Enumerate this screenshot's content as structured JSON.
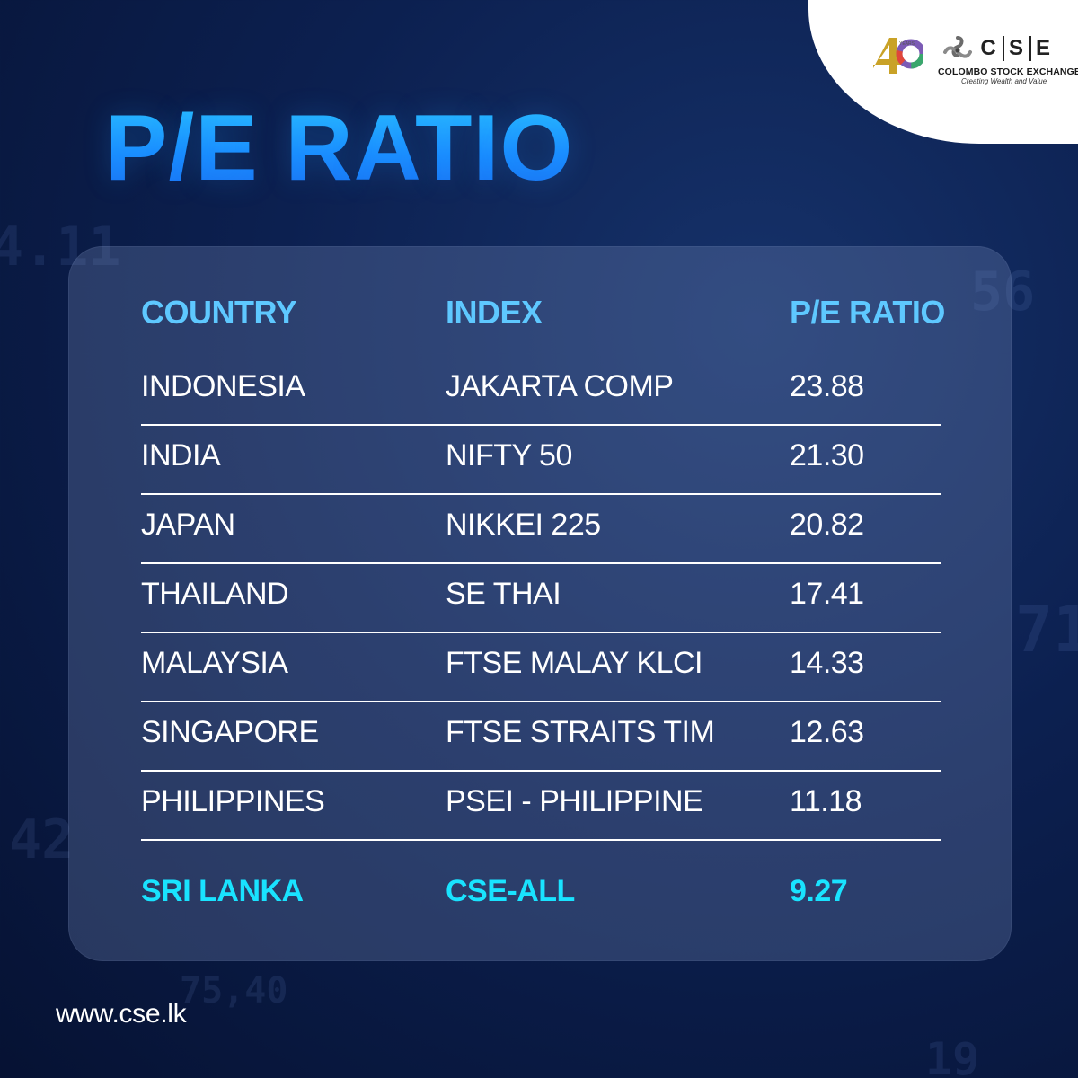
{
  "title": "P/E RATIO",
  "logo": {
    "years_badge": "40 YEARS",
    "letters": [
      "C",
      "S",
      "E"
    ],
    "name": "COLOMBO STOCK EXCHANGE",
    "tagline": "Creating Wealth and Value"
  },
  "table": {
    "headers": {
      "country": "COUNTRY",
      "index": "INDEX",
      "pe": "P/E RATIO"
    },
    "rows": [
      {
        "country": "INDONESIA",
        "index": "JAKARTA COMP",
        "pe": "23.88"
      },
      {
        "country": "INDIA",
        "index": "NIFTY 50",
        "pe": "21.30"
      },
      {
        "country": "JAPAN",
        "index": "NIKKEI 225",
        "pe": "20.82"
      },
      {
        "country": "THAILAND",
        "index": "SE THAI",
        "pe": "17.41"
      },
      {
        "country": "MALAYSIA",
        "index": "FTSE MALAY KLCI",
        "pe": "14.33"
      },
      {
        "country": "SINGAPORE",
        "index": "FTSE STRAITS TIM",
        "pe": "12.63"
      },
      {
        "country": "PHILIPPINES",
        "index": "PSEI - PHILIPPINE",
        "pe": "11.18"
      }
    ],
    "highlight": {
      "country": "SRI LANKA",
      "index": "CSE-ALL",
      "pe": "9.27"
    }
  },
  "website": "www.cse.lk",
  "colors": {
    "title": "#1a8dff",
    "header": "#5ec8ff",
    "highlight": "#19e3ff",
    "background": "#0c2050"
  }
}
